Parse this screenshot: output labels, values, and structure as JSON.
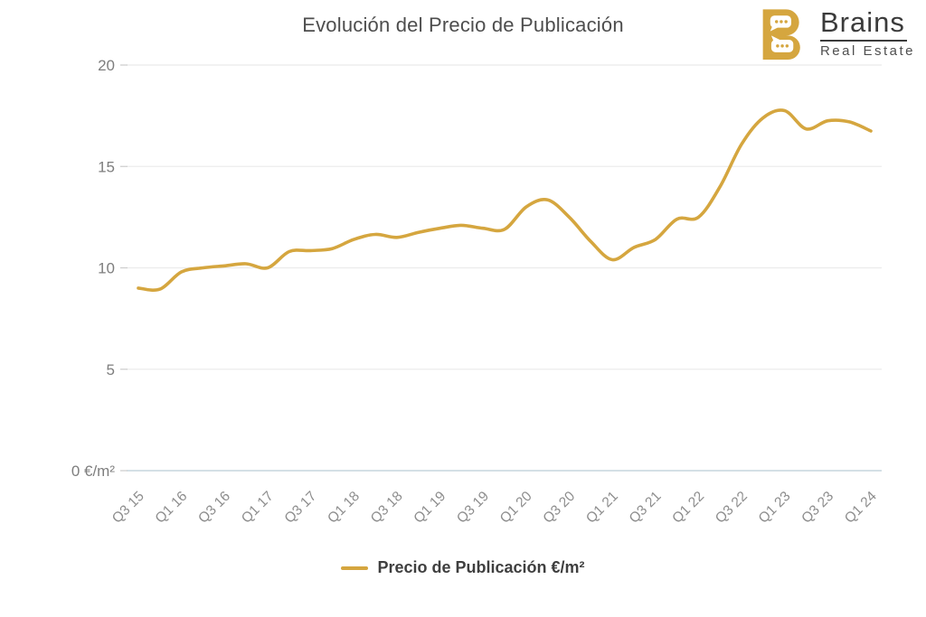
{
  "title": "Evolución del Precio de Publicación",
  "logo": {
    "name": "Brains",
    "subtitle": "Real Estate",
    "b_color": "#D5A63F",
    "icon": "b-with-two-speech-bubbles"
  },
  "legend": {
    "label": "Precio de Publicación €/m²"
  },
  "colors": {
    "line": "#D5A63F",
    "grid": "#ebebeb",
    "axis_line": "#c6d5dd",
    "tick": "#cccccc",
    "title_text": "#4d4d4d",
    "axis_text": "#8d8d8d",
    "legend_text": "#3f3f3f"
  },
  "chart_data": {
    "type": "line",
    "title": "Evolución del Precio de Publicación",
    "unit": "€/m²",
    "grid": "horizontal-only",
    "legend_position": "bottom-center",
    "smooth": true,
    "y_axis_range": [
      0,
      20
    ],
    "y_tick_values": [
      20,
      15,
      10,
      5,
      0
    ],
    "y_tick_labels": [
      "20",
      "15",
      "10",
      "5",
      "0 €/m²"
    ],
    "x_tick_labels": [
      "Q3 15",
      "Q1 16",
      "Q3 16",
      "Q1 17",
      "Q3 17",
      "Q1 18",
      "Q3 18",
      "Q1 19",
      "Q3 19",
      "Q1 20",
      "Q3 20",
      "Q1 21",
      "Q3 21",
      "Q1 22",
      "Q3 22",
      "Q1 23",
      "Q3 23",
      "Q1 24"
    ],
    "x_quarters": [
      "Q3 15",
      "Q4 15",
      "Q1 16",
      "Q2 16",
      "Q3 16",
      "Q4 16",
      "Q1 17",
      "Q2 17",
      "Q3 17",
      "Q4 17",
      "Q1 18",
      "Q2 18",
      "Q3 18",
      "Q4 18",
      "Q1 19",
      "Q2 19",
      "Q3 19",
      "Q4 19",
      "Q1 20",
      "Q2 20",
      "Q3 20",
      "Q4 20",
      "Q1 21",
      "Q2 21",
      "Q3 21",
      "Q4 21",
      "Q1 22",
      "Q2 22",
      "Q3 22",
      "Q4 22",
      "Q1 23",
      "Q2 23",
      "Q3 23",
      "Q4 23",
      "Q1 24"
    ],
    "series": [
      {
        "name": "Precio de Publicación €/m²",
        "color": "#D5A63F",
        "values": [
          9.0,
          8.95,
          9.8,
          10.0,
          10.1,
          10.2,
          10.0,
          10.8,
          10.85,
          10.95,
          11.4,
          11.65,
          11.5,
          11.75,
          11.95,
          12.1,
          11.95,
          11.9,
          13.0,
          13.35,
          12.5,
          11.3,
          10.4,
          11.0,
          11.4,
          12.4,
          12.5,
          14.0,
          16.1,
          17.4,
          17.75,
          16.85,
          17.25,
          17.2,
          16.75
        ]
      }
    ]
  }
}
